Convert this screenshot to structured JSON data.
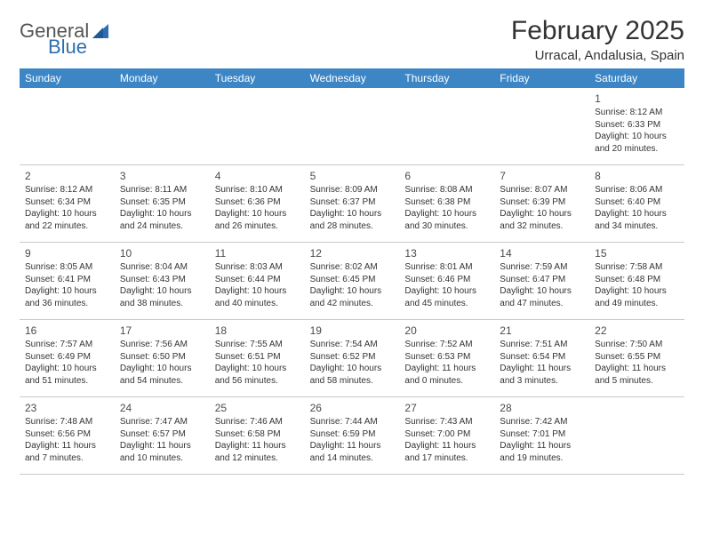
{
  "brand": {
    "part1": "General",
    "part2": "Blue"
  },
  "title": {
    "month": "February 2025",
    "location": "Urracal, Andalusia, Spain"
  },
  "colors": {
    "header_bg": "#3d86c6",
    "header_text": "#ffffff",
    "border": "#c9c9c9",
    "text": "#333333",
    "brand_blue": "#2f6fb0"
  },
  "dayNames": [
    "Sunday",
    "Monday",
    "Tuesday",
    "Wednesday",
    "Thursday",
    "Friday",
    "Saturday"
  ],
  "weeks": [
    [
      null,
      null,
      null,
      null,
      null,
      null,
      {
        "n": "1",
        "sr": "Sunrise: 8:12 AM",
        "ss": "Sunset: 6:33 PM",
        "dl": "Daylight: 10 hours and 20 minutes."
      }
    ],
    [
      {
        "n": "2",
        "sr": "Sunrise: 8:12 AM",
        "ss": "Sunset: 6:34 PM",
        "dl": "Daylight: 10 hours and 22 minutes."
      },
      {
        "n": "3",
        "sr": "Sunrise: 8:11 AM",
        "ss": "Sunset: 6:35 PM",
        "dl": "Daylight: 10 hours and 24 minutes."
      },
      {
        "n": "4",
        "sr": "Sunrise: 8:10 AM",
        "ss": "Sunset: 6:36 PM",
        "dl": "Daylight: 10 hours and 26 minutes."
      },
      {
        "n": "5",
        "sr": "Sunrise: 8:09 AM",
        "ss": "Sunset: 6:37 PM",
        "dl": "Daylight: 10 hours and 28 minutes."
      },
      {
        "n": "6",
        "sr": "Sunrise: 8:08 AM",
        "ss": "Sunset: 6:38 PM",
        "dl": "Daylight: 10 hours and 30 minutes."
      },
      {
        "n": "7",
        "sr": "Sunrise: 8:07 AM",
        "ss": "Sunset: 6:39 PM",
        "dl": "Daylight: 10 hours and 32 minutes."
      },
      {
        "n": "8",
        "sr": "Sunrise: 8:06 AM",
        "ss": "Sunset: 6:40 PM",
        "dl": "Daylight: 10 hours and 34 minutes."
      }
    ],
    [
      {
        "n": "9",
        "sr": "Sunrise: 8:05 AM",
        "ss": "Sunset: 6:41 PM",
        "dl": "Daylight: 10 hours and 36 minutes."
      },
      {
        "n": "10",
        "sr": "Sunrise: 8:04 AM",
        "ss": "Sunset: 6:43 PM",
        "dl": "Daylight: 10 hours and 38 minutes."
      },
      {
        "n": "11",
        "sr": "Sunrise: 8:03 AM",
        "ss": "Sunset: 6:44 PM",
        "dl": "Daylight: 10 hours and 40 minutes."
      },
      {
        "n": "12",
        "sr": "Sunrise: 8:02 AM",
        "ss": "Sunset: 6:45 PM",
        "dl": "Daylight: 10 hours and 42 minutes."
      },
      {
        "n": "13",
        "sr": "Sunrise: 8:01 AM",
        "ss": "Sunset: 6:46 PM",
        "dl": "Daylight: 10 hours and 45 minutes."
      },
      {
        "n": "14",
        "sr": "Sunrise: 7:59 AM",
        "ss": "Sunset: 6:47 PM",
        "dl": "Daylight: 10 hours and 47 minutes."
      },
      {
        "n": "15",
        "sr": "Sunrise: 7:58 AM",
        "ss": "Sunset: 6:48 PM",
        "dl": "Daylight: 10 hours and 49 minutes."
      }
    ],
    [
      {
        "n": "16",
        "sr": "Sunrise: 7:57 AM",
        "ss": "Sunset: 6:49 PM",
        "dl": "Daylight: 10 hours and 51 minutes."
      },
      {
        "n": "17",
        "sr": "Sunrise: 7:56 AM",
        "ss": "Sunset: 6:50 PM",
        "dl": "Daylight: 10 hours and 54 minutes."
      },
      {
        "n": "18",
        "sr": "Sunrise: 7:55 AM",
        "ss": "Sunset: 6:51 PM",
        "dl": "Daylight: 10 hours and 56 minutes."
      },
      {
        "n": "19",
        "sr": "Sunrise: 7:54 AM",
        "ss": "Sunset: 6:52 PM",
        "dl": "Daylight: 10 hours and 58 minutes."
      },
      {
        "n": "20",
        "sr": "Sunrise: 7:52 AM",
        "ss": "Sunset: 6:53 PM",
        "dl": "Daylight: 11 hours and 0 minutes."
      },
      {
        "n": "21",
        "sr": "Sunrise: 7:51 AM",
        "ss": "Sunset: 6:54 PM",
        "dl": "Daylight: 11 hours and 3 minutes."
      },
      {
        "n": "22",
        "sr": "Sunrise: 7:50 AM",
        "ss": "Sunset: 6:55 PM",
        "dl": "Daylight: 11 hours and 5 minutes."
      }
    ],
    [
      {
        "n": "23",
        "sr": "Sunrise: 7:48 AM",
        "ss": "Sunset: 6:56 PM",
        "dl": "Daylight: 11 hours and 7 minutes."
      },
      {
        "n": "24",
        "sr": "Sunrise: 7:47 AM",
        "ss": "Sunset: 6:57 PM",
        "dl": "Daylight: 11 hours and 10 minutes."
      },
      {
        "n": "25",
        "sr": "Sunrise: 7:46 AM",
        "ss": "Sunset: 6:58 PM",
        "dl": "Daylight: 11 hours and 12 minutes."
      },
      {
        "n": "26",
        "sr": "Sunrise: 7:44 AM",
        "ss": "Sunset: 6:59 PM",
        "dl": "Daylight: 11 hours and 14 minutes."
      },
      {
        "n": "27",
        "sr": "Sunrise: 7:43 AM",
        "ss": "Sunset: 7:00 PM",
        "dl": "Daylight: 11 hours and 17 minutes."
      },
      {
        "n": "28",
        "sr": "Sunrise: 7:42 AM",
        "ss": "Sunset: 7:01 PM",
        "dl": "Daylight: 11 hours and 19 minutes."
      },
      null
    ]
  ]
}
